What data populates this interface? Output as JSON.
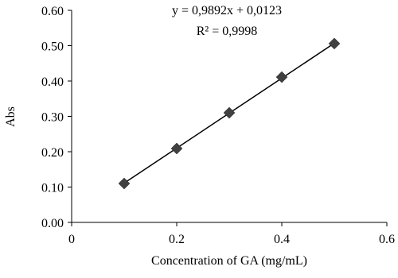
{
  "chart_data": {
    "type": "scatter",
    "x_label": "Concentration of GA (mg/mL)",
    "y_label": "Abs",
    "x": [
      0.1,
      0.2,
      0.3,
      0.4,
      0.5
    ],
    "series": [
      {
        "color": "#404040",
        "values": [
          0.11,
          0.209,
          0.31,
          0.411,
          0.506
        ]
      }
    ],
    "trendline": {
      "slope": 0.9892,
      "intercept": 0.0123,
      "color": "#000000",
      "label": "y = 0,9892x + 0,0123",
      "r2": 0.9998,
      "r2_label": "R² = 0,9998"
    },
    "xlim": [
      0,
      0.6
    ],
    "xticks": [
      0,
      0.2,
      0.4,
      0.6
    ],
    "ylim": [
      0,
      0.6
    ],
    "yticks": [
      {
        "value": 0,
        "label": "0.00"
      },
      {
        "value": 0.1,
        "label": "0.10"
      },
      {
        "value": 0.2,
        "label": "0.20"
      },
      {
        "value": 0.3,
        "label": "0.30"
      },
      {
        "value": 0.4,
        "label": "0.40"
      },
      {
        "value": 0.5,
        "label": "0.50"
      },
      {
        "value": 0.6,
        "label": "0.60"
      }
    ],
    "grid": false
  }
}
